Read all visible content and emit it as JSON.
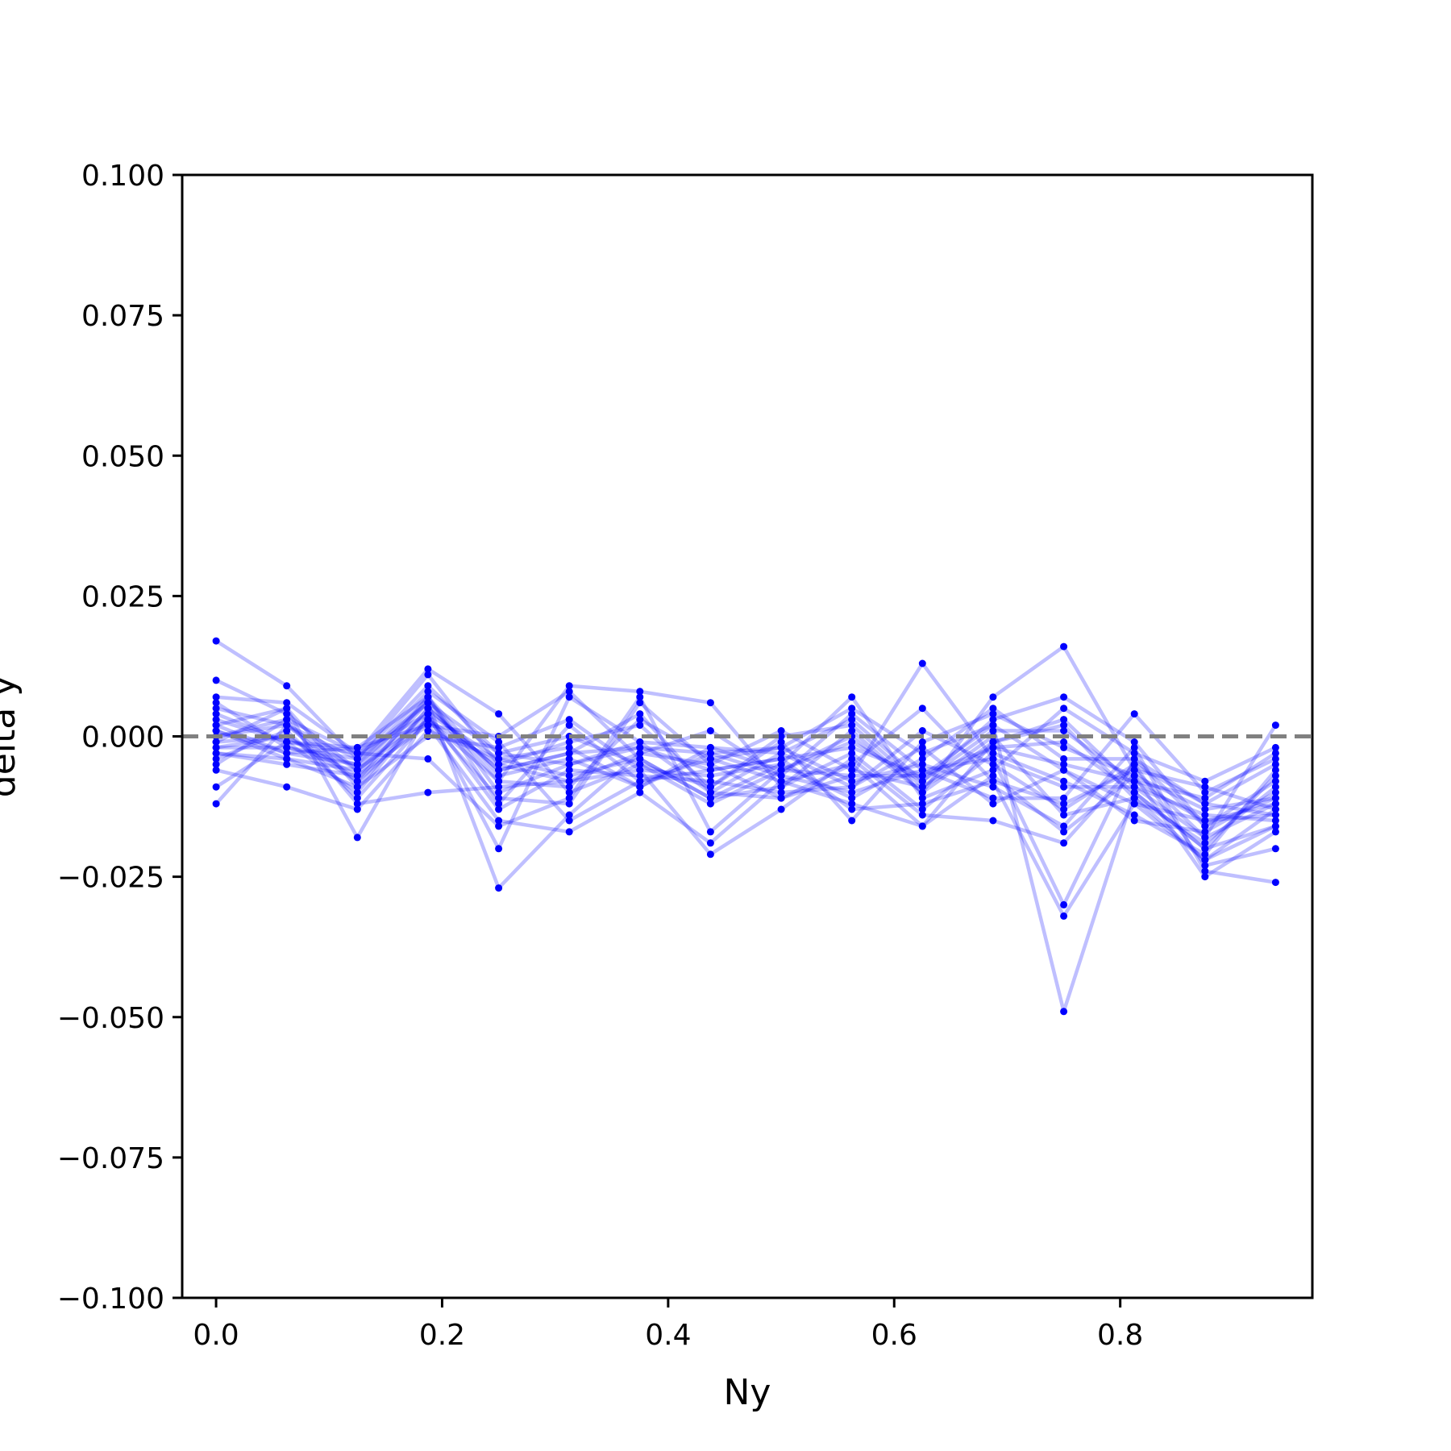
{
  "chart_data": {
    "type": "line",
    "xlabel": "Ny",
    "ylabel": "delta y",
    "xlim": [
      -0.03,
      0.97
    ],
    "ylim": [
      -0.1,
      0.1
    ],
    "xticks": [
      0.0,
      0.2,
      0.4,
      0.6,
      0.8
    ],
    "xtick_labels": [
      "0.0",
      "0.2",
      "0.4",
      "0.6",
      "0.8"
    ],
    "yticks": [
      -0.1,
      -0.075,
      -0.05,
      -0.025,
      0.0,
      0.025,
      0.05,
      0.075,
      0.1
    ],
    "ytick_labels": [
      "−0.100",
      "−0.075",
      "−0.050",
      "−0.025",
      "0.000",
      "0.025",
      "0.050",
      "0.075",
      "0.100"
    ],
    "reference_line": {
      "y": 0.0,
      "style": "dashed",
      "color": "#808080"
    },
    "series_color": "#0000ff",
    "line_opacity": 0.25,
    "grid": false,
    "x": [
      0.0,
      0.0625,
      0.125,
      0.1875,
      0.25,
      0.3125,
      0.375,
      0.4375,
      0.5,
      0.5625,
      0.625,
      0.6875,
      0.75,
      0.8125,
      0.875,
      0.9375
    ],
    "series": [
      {
        "values": [
          0.017,
          0.009,
          -0.004,
          0.006,
          -0.003,
          -0.005,
          -0.002,
          -0.006,
          -0.004,
          -0.002,
          -0.007,
          -0.002,
          -0.005,
          -0.008,
          -0.015,
          -0.012
        ]
      },
      {
        "values": [
          0.01,
          0.004,
          -0.006,
          0.003,
          -0.008,
          0.009,
          0.008,
          0.006,
          -0.009,
          0.001,
          -0.01,
          0.007,
          0.016,
          -0.006,
          -0.018,
          0.002
        ]
      },
      {
        "values": [
          0.007,
          0.006,
          -0.003,
          0.012,
          0.004,
          -0.01,
          -0.005,
          -0.012,
          -0.006,
          -0.007,
          0.013,
          -0.004,
          -0.03,
          -0.004,
          -0.012,
          -0.014
        ]
      },
      {
        "values": [
          0.005,
          0.002,
          -0.008,
          0.007,
          -0.012,
          0.002,
          -0.008,
          -0.004,
          -0.002,
          0.005,
          -0.003,
          0.002,
          -0.049,
          -0.01,
          -0.02,
          -0.016
        ]
      },
      {
        "values": [
          0.003,
          -0.001,
          -0.01,
          0.005,
          -0.006,
          -0.003,
          0.004,
          -0.01,
          -0.011,
          -0.005,
          0.005,
          -0.008,
          -0.032,
          -0.012,
          -0.022,
          -0.013
        ]
      },
      {
        "values": [
          0.002,
          0.005,
          -0.018,
          0.004,
          -0.02,
          0.007,
          -0.001,
          -0.002,
          -0.003,
          0.003,
          -0.008,
          0.003,
          0.007,
          -0.001,
          -0.016,
          -0.011
        ]
      },
      {
        "values": [
          0.001,
          -0.003,
          -0.005,
          0.006,
          -0.027,
          -0.014,
          -0.003,
          0.001,
          -0.007,
          -0.01,
          -0.006,
          -0.011,
          -0.011,
          0.004,
          -0.01,
          -0.004
        ]
      },
      {
        "values": [
          0.0,
          0.003,
          -0.012,
          -0.01,
          -0.009,
          -0.008,
          -0.006,
          -0.021,
          -0.013,
          -0.004,
          -0.014,
          -0.015,
          -0.019,
          -0.005,
          -0.023,
          -0.02
        ]
      },
      {
        "values": [
          -0.001,
          0.0,
          -0.007,
          0.002,
          -0.015,
          -0.017,
          -0.01,
          -0.019,
          -0.008,
          -0.012,
          -0.016,
          -0.001,
          0.003,
          -0.009,
          -0.014,
          -0.015
        ]
      },
      {
        "values": [
          -0.002,
          -0.002,
          -0.004,
          0.011,
          -0.005,
          -0.001,
          0.002,
          -0.009,
          -0.001,
          -0.015,
          -0.001,
          0.004,
          -0.002,
          -0.007,
          -0.025,
          -0.017
        ]
      },
      {
        "values": [
          -0.003,
          -0.004,
          -0.009,
          0.0,
          -0.002,
          0.003,
          -0.006,
          -0.007,
          -0.005,
          0.007,
          -0.011,
          -0.006,
          0.005,
          -0.003,
          -0.008,
          -0.002
        ]
      },
      {
        "values": [
          -0.004,
          0.001,
          -0.011,
          0.003,
          -0.011,
          -0.012,
          0.006,
          -0.005,
          0.001,
          -0.006,
          -0.009,
          0.0,
          -0.014,
          -0.011,
          -0.019,
          -0.009
        ]
      },
      {
        "values": [
          -0.006,
          -0.009,
          -0.013,
          0.001,
          -0.004,
          -0.007,
          -0.004,
          -0.011,
          -0.009,
          -0.003,
          -0.013,
          -0.003,
          -0.008,
          -0.014,
          -0.021,
          -0.006
        ]
      },
      {
        "values": [
          -0.009,
          -0.001,
          -0.002,
          0.007,
          -0.007,
          -0.004,
          -0.009,
          -0.003,
          -0.002,
          -0.008,
          -0.005,
          -0.009,
          -0.016,
          -0.002,
          -0.024,
          -0.026
        ]
      },
      {
        "values": [
          -0.012,
          0.002,
          -0.006,
          0.004,
          -0.013,
          -0.006,
          -0.007,
          -0.008,
          -0.01,
          -0.009,
          -0.002,
          -0.012,
          -0.006,
          -0.015,
          -0.017,
          -0.01
        ]
      },
      {
        "values": [
          0.006,
          -0.002,
          -0.005,
          0.008,
          -0.001,
          -0.015,
          -0.008,
          -0.006,
          -0.004,
          -0.013,
          -0.012,
          -0.008,
          -0.012,
          -0.006,
          -0.009,
          -0.013
        ]
      },
      {
        "values": [
          0.004,
          -0.001,
          -0.003,
          -0.004,
          -0.016,
          -0.011,
          0.007,
          -0.017,
          -0.006,
          -0.001,
          -0.008,
          0.001,
          0.001,
          -0.008,
          -0.011,
          -0.003
        ]
      },
      {
        "values": [
          -0.001,
          0.005,
          -0.009,
          0.005,
          -0.006,
          -0.003,
          -0.002,
          -0.003,
          -0.007,
          0.004,
          -0.006,
          -0.004,
          -0.009,
          -0.009,
          -0.018,
          -0.012
        ]
      },
      {
        "values": [
          0.002,
          -0.003,
          -0.002,
          0.002,
          0.0,
          0.008,
          -0.004,
          -0.011,
          -0.005,
          -0.011,
          -0.004,
          0.005,
          -0.004,
          -0.004,
          -0.016,
          -0.008
        ]
      },
      {
        "values": [
          -0.003,
          -0.005,
          -0.007,
          0.006,
          -0.008,
          -0.009,
          0.003,
          -0.004,
          -0.008,
          -0.005,
          -0.016,
          -0.007,
          -0.017,
          -0.007,
          -0.013,
          -0.011
        ]
      },
      {
        "values": [
          0.0,
          0.002,
          -0.004,
          0.009,
          -0.003,
          0.0,
          -0.005,
          -0.009,
          0.0,
          0.002,
          -0.009,
          -0.002,
          -0.001,
          -0.01,
          -0.02,
          -0.007
        ]
      },
      {
        "values": [
          -0.002,
          0.0,
          -0.008,
          0.003,
          -0.005,
          -0.008,
          -0.003,
          -0.005,
          -0.011,
          -0.007,
          -0.007,
          0.002,
          -0.006,
          -0.012,
          -0.015,
          -0.014
        ]
      },
      {
        "values": [
          0.001,
          -0.004,
          -0.006,
          0.007,
          -0.01,
          -0.005,
          -0.001,
          -0.01,
          -0.003,
          -0.009,
          0.001,
          -0.005,
          -0.013,
          -0.005,
          -0.012,
          -0.005
        ]
      },
      {
        "values": [
          -0.005,
          0.003,
          -0.003,
          0.004,
          -0.004,
          -0.002,
          -0.009,
          -0.002,
          -0.006,
          0.0,
          -0.01,
          -0.001,
          0.002,
          -0.011,
          -0.022,
          -0.016
        ]
      }
    ]
  }
}
